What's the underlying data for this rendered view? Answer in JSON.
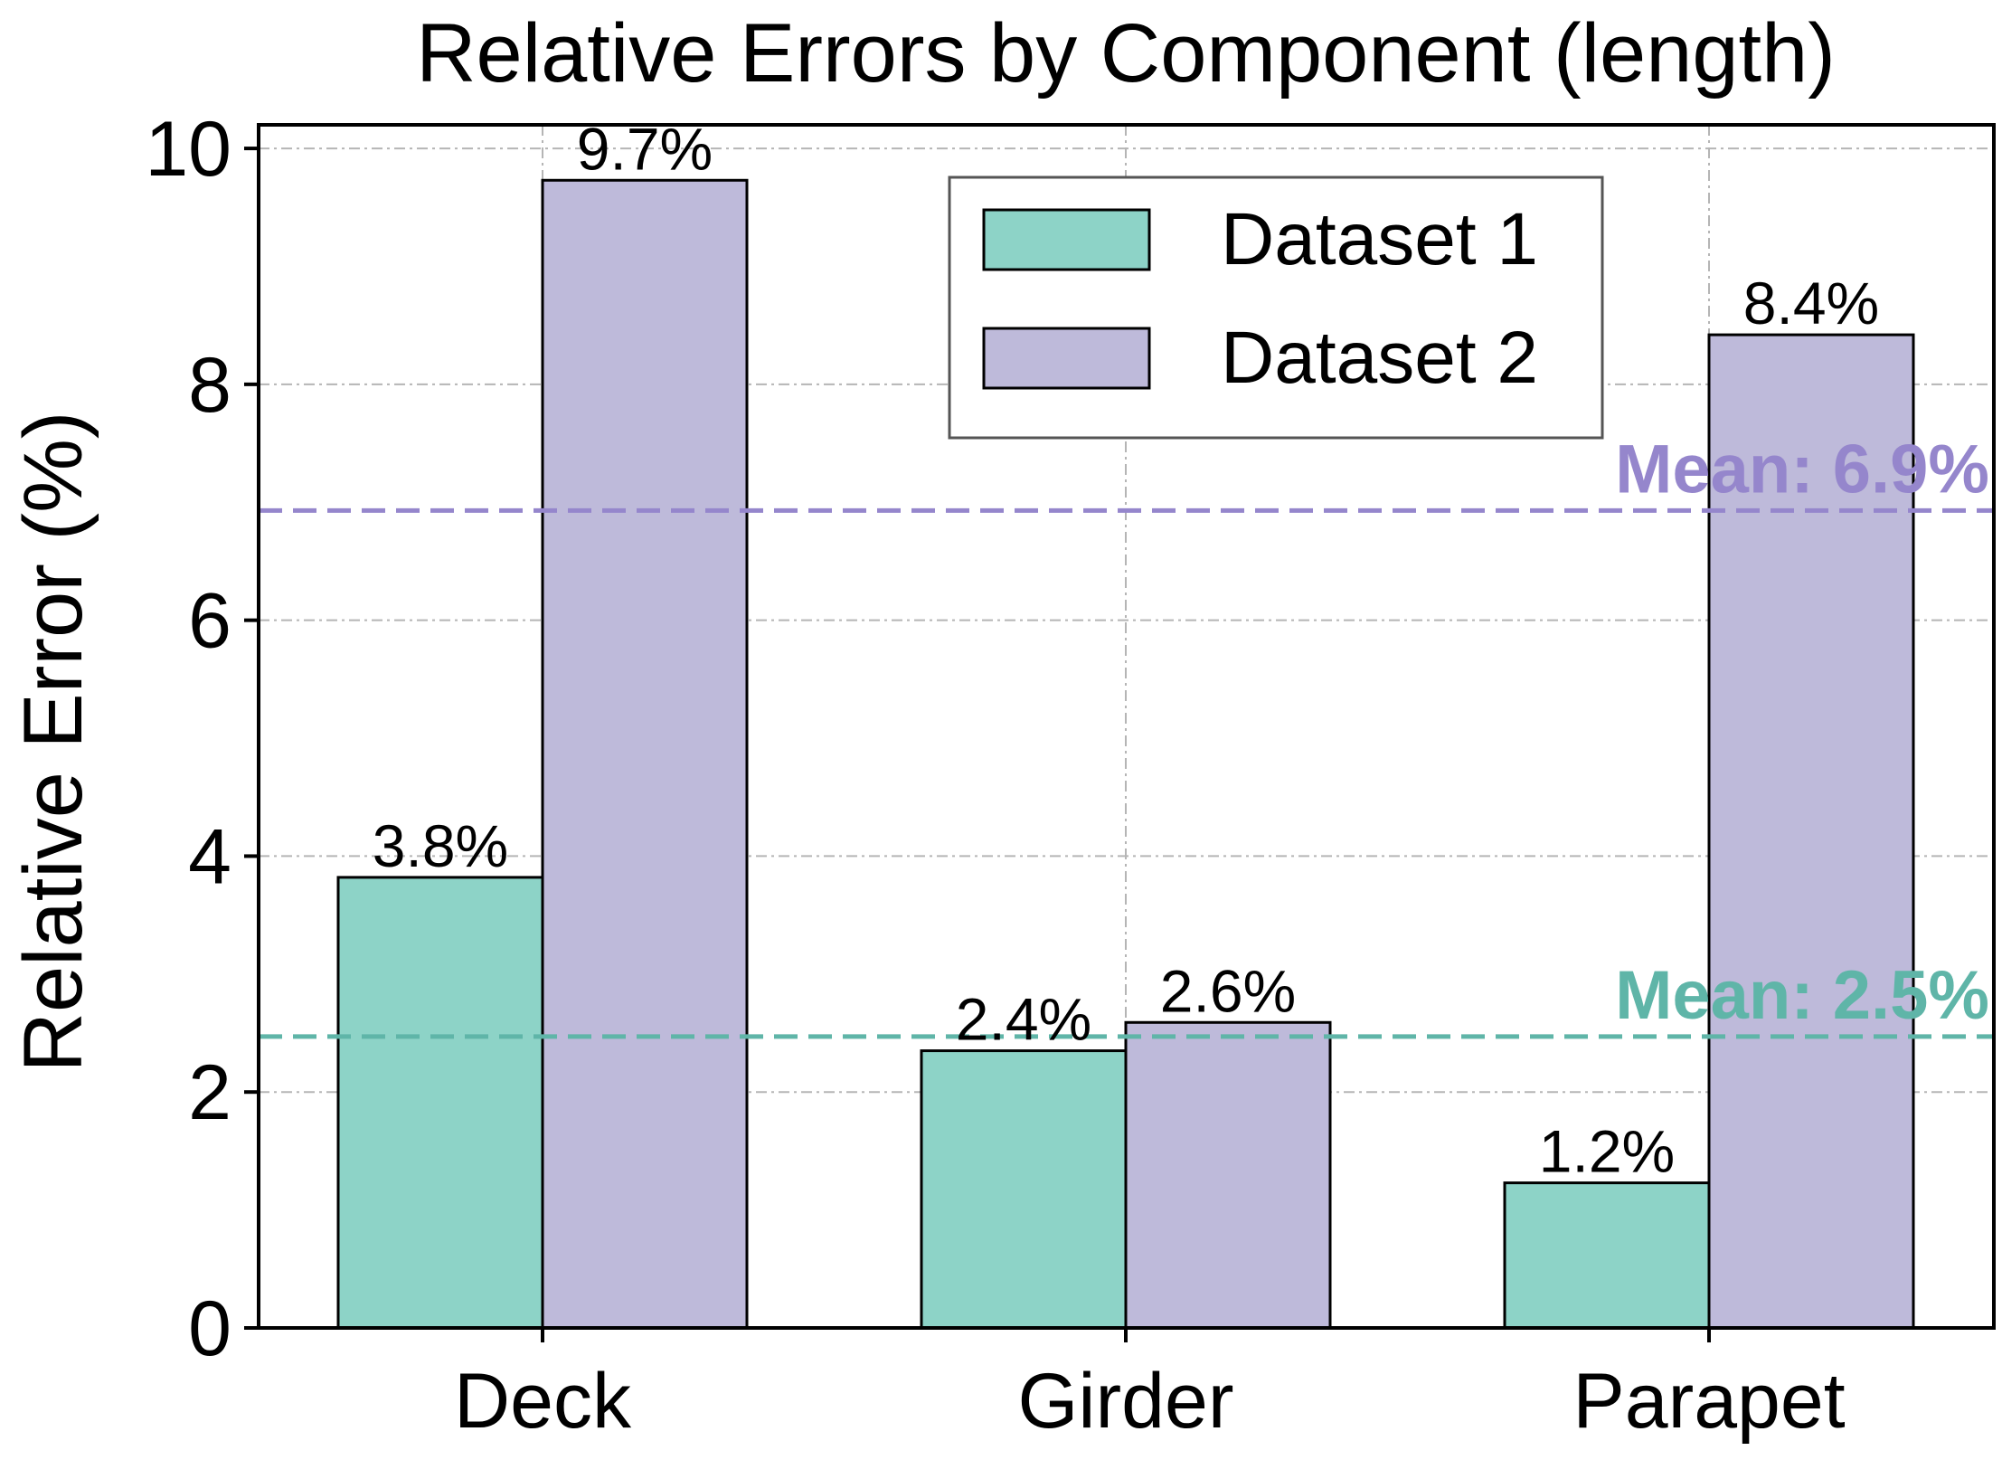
{
  "chart_data": {
    "type": "bar",
    "title": "Relative Errors by Component (length)",
    "xlabel": "",
    "ylabel": "Relative Error (%)",
    "ylim": [
      0,
      10.2
    ],
    "yticks": [
      0,
      2,
      4,
      6,
      8,
      10
    ],
    "categories": [
      "Deck",
      "Girder",
      "Parapet"
    ],
    "series": [
      {
        "name": "Dataset 1",
        "values": [
          3.82,
          2.35,
          1.23
        ],
        "labels": [
          "3.8%",
          "2.4%",
          "1.2%"
        ],
        "color": "#8dd3c7"
      },
      {
        "name": "Dataset 2",
        "values": [
          9.73,
          2.59,
          8.42
        ],
        "labels": [
          "9.7%",
          "2.6%",
          "8.4%"
        ],
        "color": "#bebada"
      }
    ],
    "mean_lines": [
      {
        "series": "Dataset 1",
        "value": 2.47,
        "label": "Mean: 2.5%",
        "color": "#5fb5a8"
      },
      {
        "series": "Dataset 2",
        "value": 6.93,
        "label": "Mean: 6.9%",
        "color": "#9586cc"
      }
    ],
    "grid": true,
    "legend_position": "top-center"
  }
}
